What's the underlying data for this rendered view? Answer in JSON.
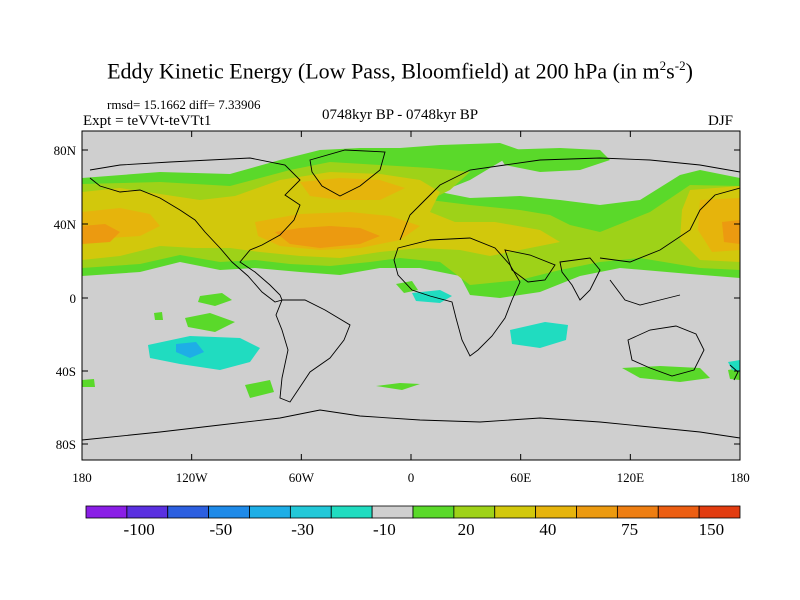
{
  "header": {
    "title_main": "Eddy Kinetic Energy (Low Pass, Bloomfield) at 200 hPa (in m",
    "title_sup1": "2",
    "title_mid": "s",
    "title_sup2": "-2",
    "title_end": ")",
    "stats": "rmsd= 15.1662  diff= 7.33906",
    "expt": "Expt = teVVt-teVTt1",
    "period": "0748kyr BP - 0748kyr BP",
    "season": "DJF"
  },
  "map": {
    "background_color": "#cfcfcf",
    "lat_ticks": [
      "80N",
      "40N",
      "0",
      "40S",
      "80S"
    ],
    "lon_ticks": [
      "180",
      "120W",
      "60W",
      "0",
      "60E",
      "120E",
      "180"
    ]
  },
  "colorbar": {
    "colors": [
      "#8a1ee6",
      "#5a30e0",
      "#2c5fe0",
      "#1e8ae8",
      "#1eaee6",
      "#22c8d8",
      "#20dcc0",
      "#cfcfcf",
      "#5ad92a",
      "#9ed218",
      "#d2c80c",
      "#e6b40c",
      "#ec9a10",
      "#ee7e12",
      "#ec5e12",
      "#e23c10"
    ],
    "labels": [
      "-100",
      "-50",
      "-30",
      "-10",
      "20",
      "40",
      "75",
      "150"
    ]
  },
  "colors": {
    "green": "#5ad92a",
    "yellow_green": "#9ed218",
    "yellow": "#d2c80c",
    "orange_light": "#e6b40c",
    "orange": "#ec9a10",
    "cyan": "#20dcc0",
    "light_blue": "#1eaee6"
  }
}
